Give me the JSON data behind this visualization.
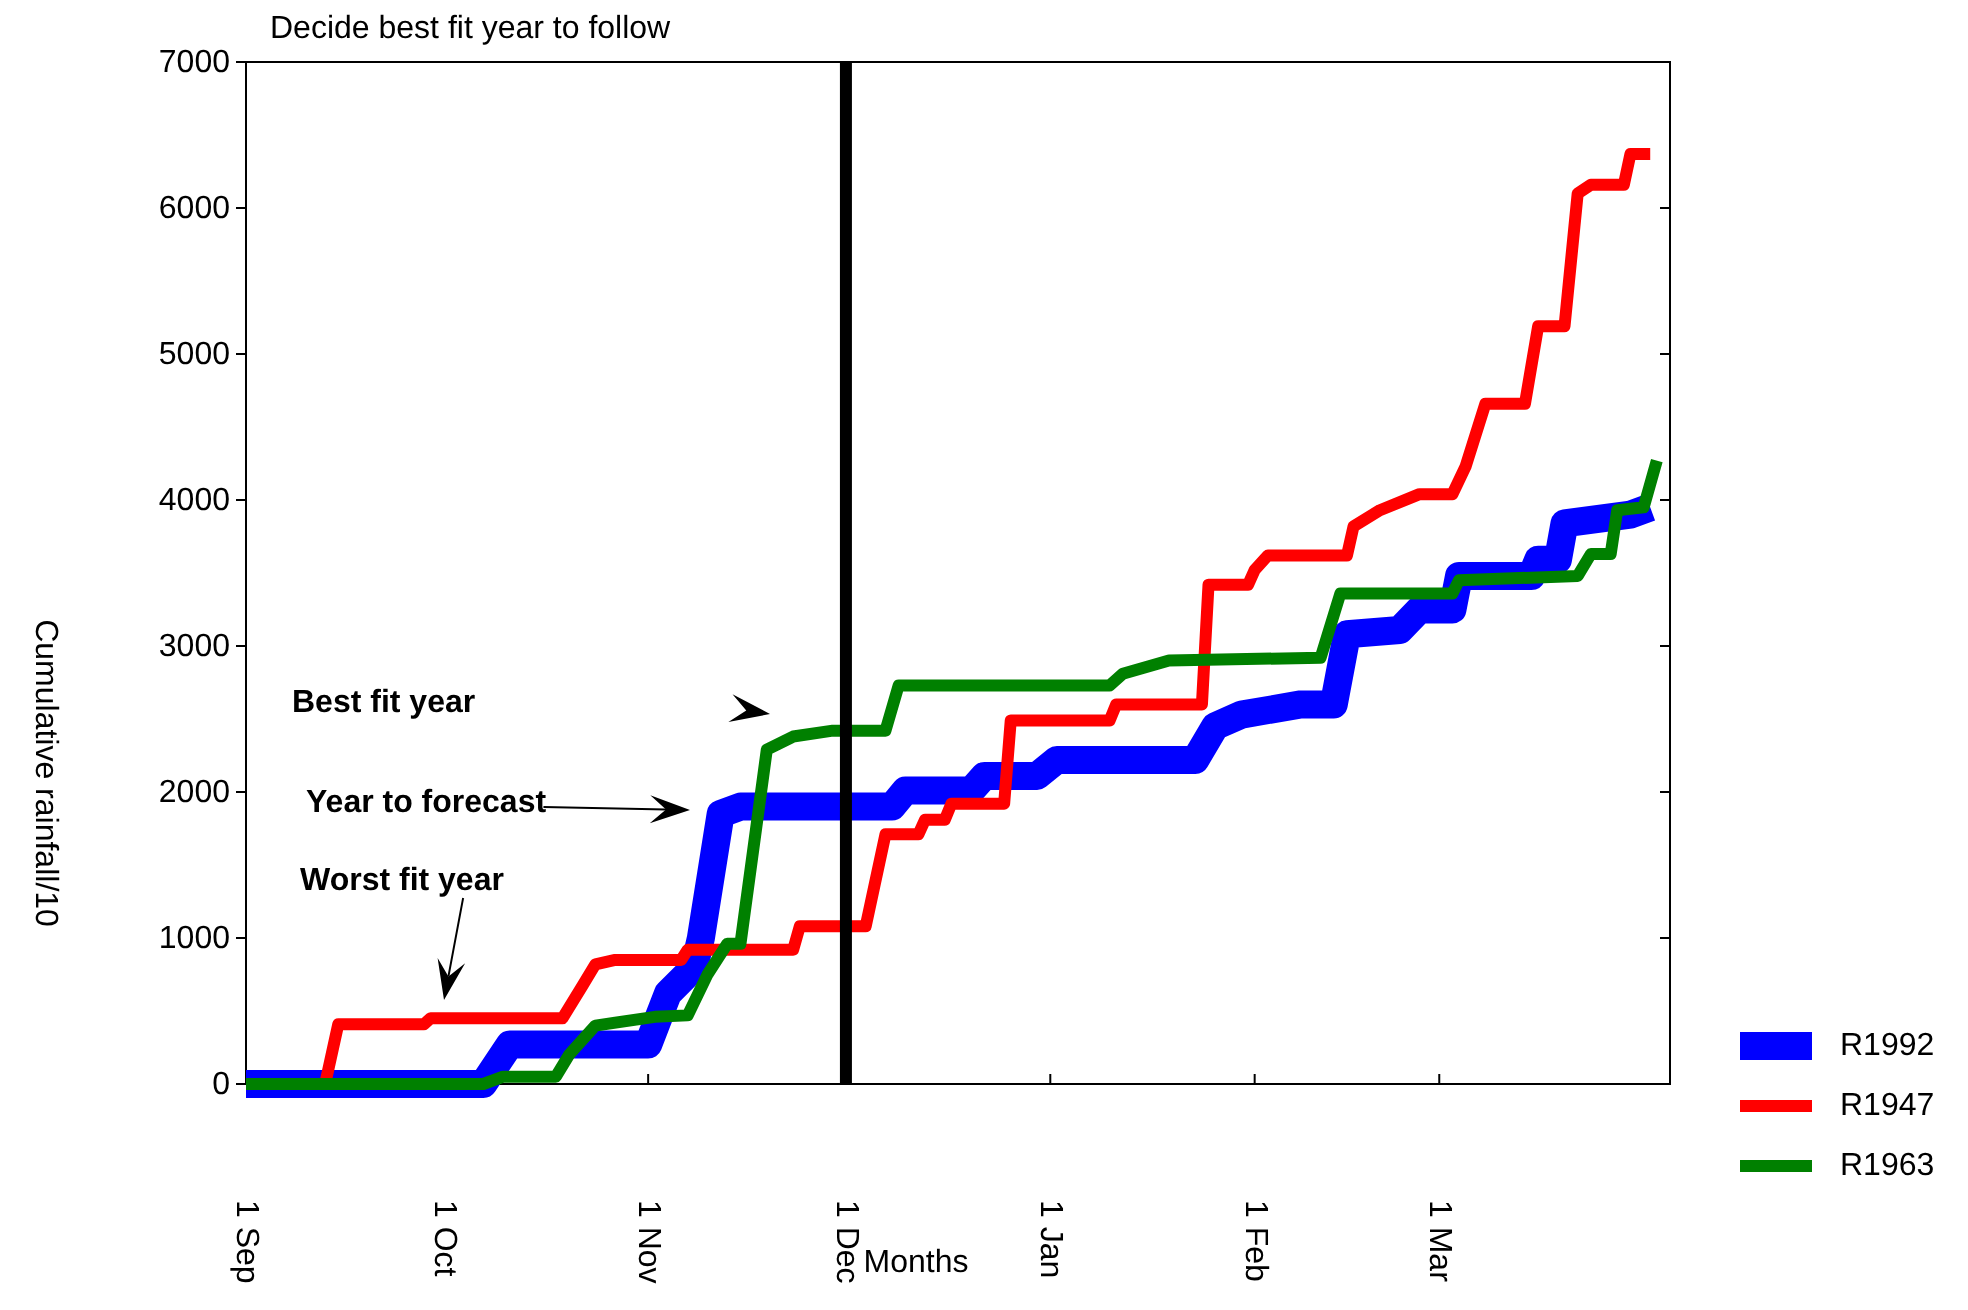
{
  "chart_data": {
    "type": "line",
    "title": "Decide best fit year to follow",
    "xlabel": "Months",
    "ylabel": "Cumulative rainfall/10",
    "xlim": [
      "2000-09-01",
      "2001-04-05"
    ],
    "xticks": [
      {
        "value": "2000-09-01",
        "label": "1 Sep"
      },
      {
        "value": "2000-10-01",
        "label": "1 Oct"
      },
      {
        "value": "2000-11-01",
        "label": "1 Nov"
      },
      {
        "value": "2000-12-01",
        "label": "1 Dec"
      },
      {
        "value": "2001-01-01",
        "label": "1 Jan"
      },
      {
        "value": "2001-02-01",
        "label": "1 Feb"
      },
      {
        "value": "2001-03-01",
        "label": "1 Mar"
      }
    ],
    "ylim": [
      0,
      7000
    ],
    "yticks": [
      0,
      1000,
      2000,
      3000,
      4000,
      5000,
      6000,
      7000
    ],
    "grid": false,
    "legend": "right",
    "ref_lines": [
      {
        "axis": "x",
        "value": "2000-12-01",
        "color": "#000000"
      }
    ],
    "annotations": [
      "Best fit year",
      "Year to forecast",
      "Worst fit year"
    ],
    "series": [
      {
        "name": "R1992",
        "color": "#0000ff",
        "x": [
          "2000-09-01",
          "2000-10-07",
          "2000-10-11",
          "2000-11-01",
          "2000-11-04",
          "2000-11-08",
          "2000-11-09",
          "2000-11-12",
          "2000-11-15",
          "2000-12-08",
          "2000-12-10",
          "2000-12-20",
          "2000-12-22",
          "2000-12-30",
          "2001-01-02",
          "2001-01-23",
          "2001-01-26",
          "2001-01-30",
          "2001-02-08",
          "2001-02-13",
          "2001-02-15",
          "2001-02-23",
          "2001-02-26",
          "2001-03-03",
          "2001-03-04",
          "2001-03-15",
          "2001-03-16",
          "2001-03-19",
          "2001-03-20",
          "2001-03-30",
          "2001-04-02"
        ],
        "values": [
          0,
          0,
          270,
          270,
          620,
          800,
          1000,
          1850,
          1900,
          1900,
          2010,
          2010,
          2110,
          2110,
          2220,
          2220,
          2450,
          2530,
          2600,
          2600,
          3080,
          3110,
          3250,
          3250,
          3480,
          3480,
          3590,
          3590,
          3840,
          3900,
          3950
        ]
      },
      {
        "name": "R1947",
        "color": "#ff0000",
        "x": [
          "2000-09-01",
          "2000-09-13",
          "2000-09-15",
          "2000-09-28",
          "2000-09-29",
          "2000-10-19",
          "2000-10-22",
          "2000-10-24",
          "2000-10-27",
          "2000-11-06",
          "2000-11-07",
          "2000-11-23",
          "2000-11-24",
          "2000-12-04",
          "2000-12-07",
          "2000-12-12",
          "2000-12-13",
          "2000-12-16",
          "2000-12-17",
          "2000-12-25",
          "2000-12-26",
          "2001-01-10",
          "2001-01-11",
          "2001-01-24",
          "2001-01-25",
          "2001-01-31",
          "2001-02-01",
          "2001-02-03",
          "2001-02-15",
          "2001-02-16",
          "2001-02-20",
          "2001-02-26",
          "2001-03-03",
          "2001-03-05",
          "2001-03-08",
          "2001-03-14",
          "2001-03-16",
          "2001-03-20",
          "2001-03-22",
          "2001-03-24",
          "2001-03-29",
          "2001-03-30",
          "2001-04-02"
        ],
        "values": [
          0,
          0,
          410,
          410,
          450,
          450,
          670,
          820,
          850,
          850,
          920,
          920,
          1080,
          1080,
          1710,
          1710,
          1810,
          1810,
          1920,
          1920,
          2490,
          2490,
          2600,
          2600,
          3420,
          3420,
          3520,
          3620,
          3620,
          3820,
          3930,
          4040,
          4040,
          4230,
          4660,
          4660,
          5190,
          5190,
          6100,
          6160,
          6160,
          6370,
          6370
        ]
      },
      {
        "name": "R1963",
        "color": "#008000",
        "x": [
          "2000-09-01",
          "2000-10-07",
          "2000-10-10",
          "2000-10-18",
          "2000-10-20",
          "2000-10-24",
          "2000-11-02",
          "2000-11-07",
          "2000-11-10",
          "2000-11-13",
          "2000-11-15",
          "2000-11-19",
          "2000-11-23",
          "2000-11-29",
          "2000-12-07",
          "2000-12-09",
          "2001-01-10",
          "2001-01-12",
          "2001-01-19",
          "2001-02-11",
          "2001-02-14",
          "2001-03-03",
          "2001-03-04",
          "2001-03-22",
          "2001-03-24",
          "2001-03-27",
          "2001-03-28",
          "2001-04-01",
          "2001-04-03"
        ],
        "values": [
          0,
          0,
          50,
          50,
          200,
          400,
          460,
          470,
          750,
          960,
          960,
          2290,
          2380,
          2420,
          2420,
          2730,
          2730,
          2810,
          2900,
          2920,
          3360,
          3360,
          3450,
          3480,
          3630,
          3630,
          3930,
          3950,
          4270
        ]
      }
    ]
  }
}
